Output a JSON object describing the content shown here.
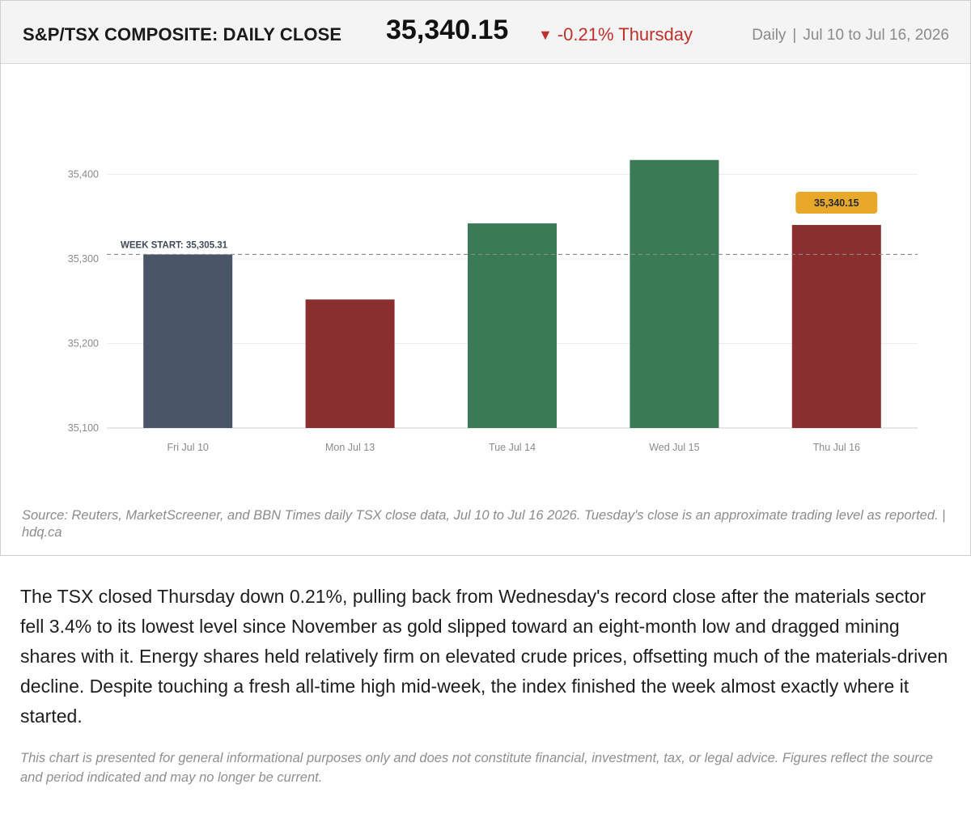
{
  "header": {
    "title": "S&P/TSX COMPOSITE: DAILY CLOSE",
    "price": "35,340.15",
    "change_arrow": "▼",
    "change_text": "-0.21% Thursday",
    "frequency": "Daily",
    "separator": "|",
    "date_range": "Jul 10 to Jul 16, 2026"
  },
  "colors": {
    "up": "#3a7a55",
    "down": "#8b2e30",
    "baseline_bar": "#4a5568",
    "callout": "#e8a92a",
    "change_text": "#c0302b"
  },
  "chart_data": {
    "type": "bar",
    "categories": [
      "Fri Jul 10",
      "Mon Jul 13",
      "Tue Jul 14",
      "Wed Jul 15",
      "Thu Jul 16"
    ],
    "values": [
      35305.31,
      35252,
      35342,
      35417,
      35340.15
    ],
    "bar_colors": [
      "#4a5568",
      "#8b2e30",
      "#3a7a55",
      "#3a7a55",
      "#8b2e30"
    ],
    "ylim": [
      35100,
      35440
    ],
    "yticks": [
      35100,
      35200,
      35300,
      35400
    ],
    "ytick_labels": [
      "35,100",
      "35,200",
      "35,300",
      "35,400"
    ],
    "grid": true,
    "reference_line": {
      "value": 35305.31,
      "label": "WEEK START: 35,305.31"
    },
    "callout": {
      "category": "Thu Jul 16",
      "label": "35,340.15"
    }
  },
  "source": "Source: Reuters, MarketScreener, and BBN Times daily TSX close data, Jul 10 to Jul 16 2026. Tuesday's close is an approximate trading level as reported.  |  hdq.ca",
  "summary": "The TSX closed Thursday down 0.21%, pulling back from Wednesday's record close after the materials sector fell 3.4% to its lowest level since November as gold slipped toward an eight-month low and dragged mining shares with it. Energy shares held relatively firm on elevated crude prices, offsetting much of the materials-driven decline. Despite touching a fresh all-time high mid-week, the index finished the week almost exactly where it started.",
  "disclaimer": "This chart is presented for general informational purposes only and does not constitute financial, investment, tax, or legal advice. Figures reflect the source and period indicated and may no longer be current."
}
